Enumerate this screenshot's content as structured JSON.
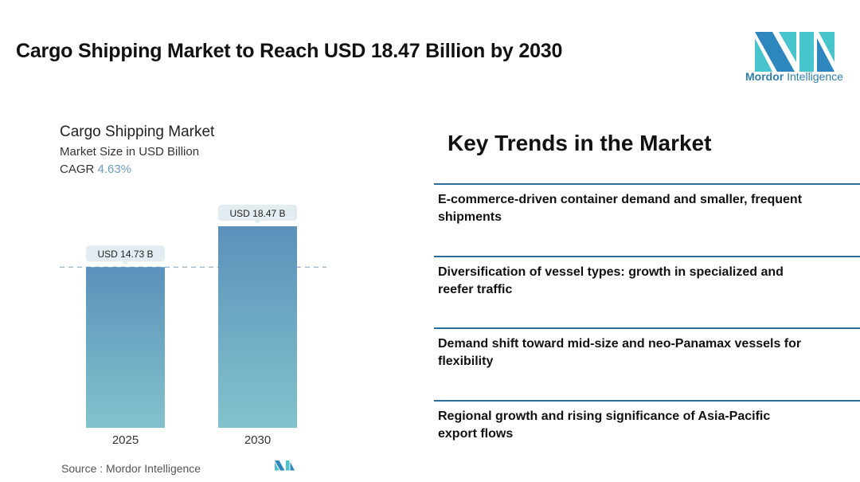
{
  "title": "Cargo Shipping Market to Reach USD 18.47 Billion by 2030",
  "logo": {
    "brand": "Mordor",
    "suffix": "Intelligence"
  },
  "chart_data": {
    "type": "bar",
    "title": "Cargo Shipping Market",
    "subtitle": "Market Size in USD Billion",
    "cagr_label": "CAGR",
    "cagr_value": "4.63%",
    "categories": [
      "2025",
      "2030"
    ],
    "values": [
      14.73,
      18.47
    ],
    "data_labels": [
      "USD 14.73 B",
      "USD 18.47 B"
    ],
    "ylim": [
      0,
      18.47
    ],
    "grid": false,
    "bar_color_top": "#5b91bb",
    "bar_color_bottom": "#82c3cc"
  },
  "source": "Source :  Mordor Intelligence",
  "key_trends": {
    "title": "Key Trends in the Market",
    "items": [
      "E-commerce-driven container demand and smaller, frequent shipments",
      "Diversification of vessel types: growth in specialized and reefer traffic",
      "Demand shift toward mid-size and neo-Panamax vessels for flexibility",
      "Regional growth and rising significance of Asia-Pacific export flows"
    ]
  }
}
